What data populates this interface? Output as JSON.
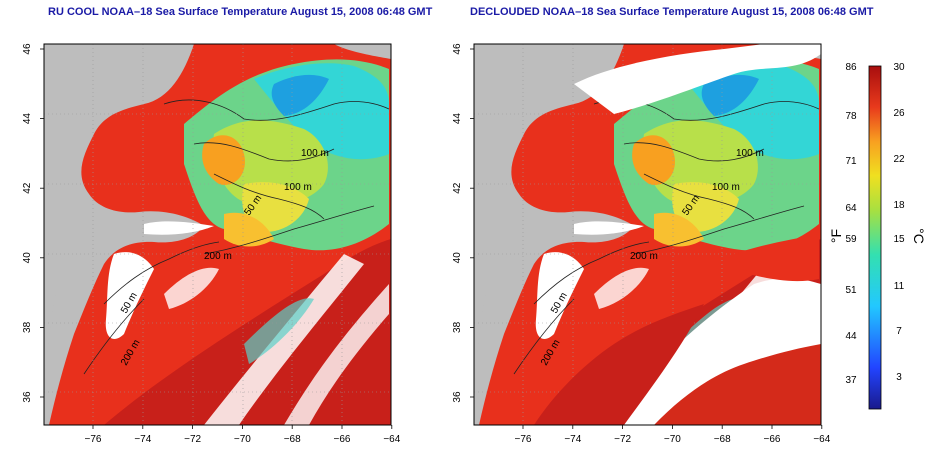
{
  "panels": [
    {
      "title": "RU COOL NOAA–18 Sea Surface Temperature August 15, 2008 06:48 GMT",
      "contours": [
        {
          "text": "100 m"
        },
        {
          "text": "100 m"
        },
        {
          "text": "50 m"
        },
        {
          "text": "200 m"
        },
        {
          "text": "50 m"
        },
        {
          "text": "200 m"
        }
      ]
    },
    {
      "title": "DECLOUDED NOAA–18 Sea Surface Temperature August 15, 2008 06:48 GMT",
      "contours": [
        {
          "text": "100 m"
        },
        {
          "text": "100 m"
        },
        {
          "text": "50 m"
        },
        {
          "text": "200 m"
        },
        {
          "text": "50 m"
        },
        {
          "text": "200 m"
        }
      ]
    }
  ],
  "axes": {
    "lat_ticks": [
      "46",
      "44",
      "42",
      "40",
      "38",
      "36"
    ],
    "lon_ticks": [
      "−76",
      "−74",
      "−72",
      "−70",
      "−68",
      "−66",
      "−64"
    ]
  },
  "colorbar": {
    "f_ticks": [
      "86",
      "78",
      "71",
      "64",
      "59",
      "51",
      "44",
      "37"
    ],
    "c_ticks": [
      "30",
      "26",
      "22",
      "18",
      "15",
      "11",
      "7",
      "3"
    ],
    "f_unit": "°F",
    "c_unit": "°C"
  },
  "colors": {
    "land": "#bdbdbd",
    "title": "#1a1aa6",
    "warm": "#e8301c",
    "cool": "#33d6d6"
  }
}
